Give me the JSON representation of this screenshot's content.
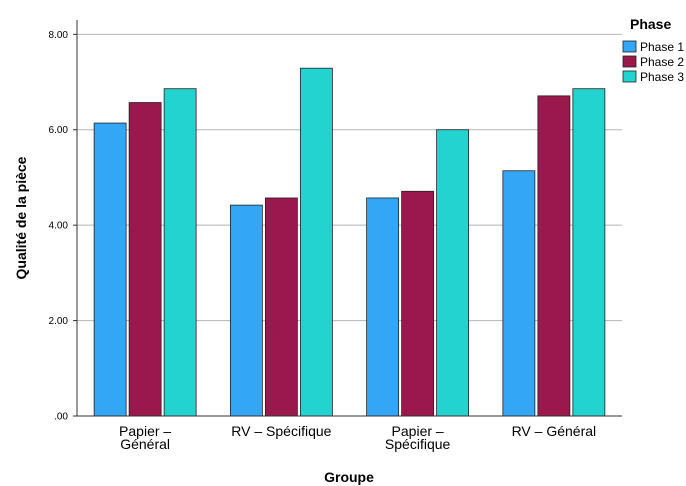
{
  "chart_data": {
    "type": "bar",
    "xlabel": "Groupe",
    "ylabel": "Qualité de la pièce",
    "categories": [
      [
        "Papier  –",
        "Général"
      ],
      [
        "RV – Spécifique"
      ],
      [
        "Papier  –",
        "Spécifique"
      ],
      [
        "RV – Général"
      ]
    ],
    "series": [
      {
        "name": "Phase 1",
        "color": "#33a6f5",
        "values": [
          6.14,
          4.42,
          4.57,
          5.14
        ]
      },
      {
        "name": "Phase 2",
        "color": "#9b184c",
        "values": [
          6.57,
          4.57,
          4.71,
          6.71
        ]
      },
      {
        "name": "Phase 3",
        "color": "#23d3cf",
        "values": [
          6.86,
          7.29,
          6.0,
          6.86
        ]
      }
    ],
    "ylim": [
      0,
      8.3
    ],
    "yticks": [
      0,
      2,
      4,
      6,
      8
    ],
    "ytick_labels": [
      ".00",
      "2.00",
      "4.00",
      "6.00",
      "8.00"
    ],
    "grid": true,
    "legend": {
      "title": "Phase",
      "placement": "top-right"
    }
  }
}
